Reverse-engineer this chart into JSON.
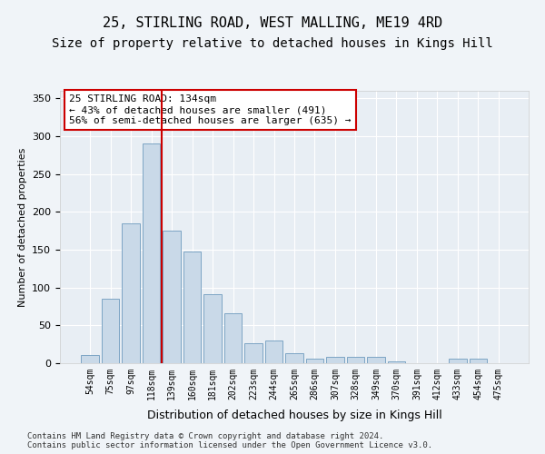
{
  "title": "25, STIRLING ROAD, WEST MALLING, ME19 4RD",
  "subtitle": "Size of property relative to detached houses in Kings Hill",
  "xlabel": "Distribution of detached houses by size in Kings Hill",
  "ylabel": "Number of detached properties",
  "categories": [
    "54sqm",
    "75sqm",
    "97sqm",
    "118sqm",
    "139sqm",
    "160sqm",
    "181sqm",
    "202sqm",
    "223sqm",
    "244sqm",
    "265sqm",
    "286sqm",
    "307sqm",
    "328sqm",
    "349sqm",
    "370sqm",
    "391sqm",
    "412sqm",
    "433sqm",
    "454sqm",
    "475sqm"
  ],
  "bar_heights": [
    11,
    85,
    185,
    290,
    175,
    148,
    91,
    66,
    26,
    30,
    13,
    6,
    8,
    8,
    9,
    3,
    0,
    0,
    6,
    6,
    0
  ],
  "bar_color": "#c9d9e8",
  "bar_edge_color": "#7da5c4",
  "vline_color": "#cc0000",
  "vline_x": 3.5,
  "annotation_text": "25 STIRLING ROAD: 134sqm\n← 43% of detached houses are smaller (491)\n56% of semi-detached houses are larger (635) →",
  "annotation_box_color": "#ffffff",
  "annotation_box_edge_color": "#cc0000",
  "footer_text": "Contains HM Land Registry data © Crown copyright and database right 2024.\nContains public sector information licensed under the Open Government Licence v3.0.",
  "fig_bg_color": "#f0f4f8",
  "plot_bg_color": "#e8eef4",
  "ylim": [
    0,
    360
  ],
  "yticks": [
    0,
    50,
    100,
    150,
    200,
    250,
    300,
    350
  ],
  "title_fontsize": 11,
  "subtitle_fontsize": 10
}
